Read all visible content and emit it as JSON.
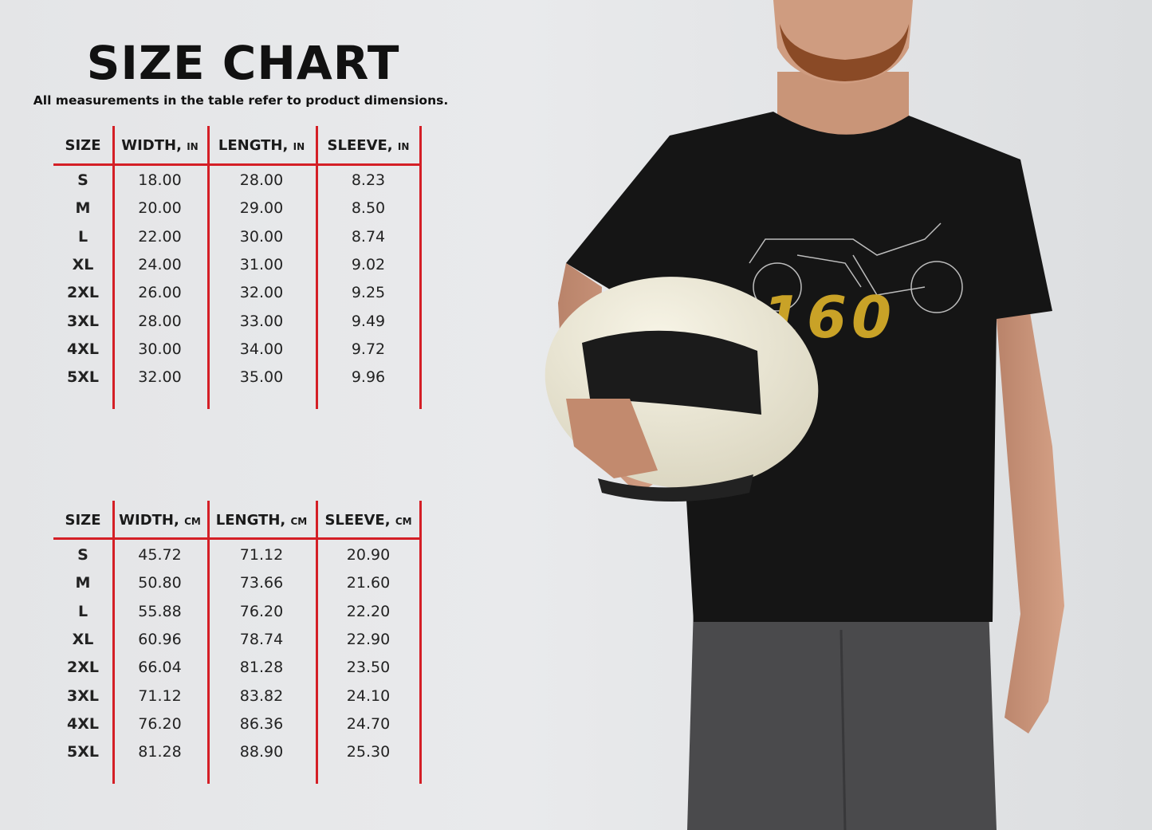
{
  "title": "SIZE CHART",
  "subtitle": "All measurements in the table refer to product dimensions.",
  "accent_color": "#d41f26",
  "tables": [
    {
      "headers": [
        {
          "label": "SIZE",
          "unit": ""
        },
        {
          "label": "WIDTH,",
          "unit": "IN"
        },
        {
          "label": "LENGTH,",
          "unit": "IN"
        },
        {
          "label": "SLEEVE,",
          "unit": "IN"
        }
      ],
      "rows": [
        [
          "S",
          "18.00",
          "28.00",
          "8.23"
        ],
        [
          "M",
          "20.00",
          "29.00",
          "8.50"
        ],
        [
          "L",
          "22.00",
          "30.00",
          "8.74"
        ],
        [
          "XL",
          "24.00",
          "31.00",
          "9.02"
        ],
        [
          "2XL",
          "26.00",
          "32.00",
          "9.25"
        ],
        [
          "3XL",
          "28.00",
          "33.00",
          "9.49"
        ],
        [
          "4XL",
          "30.00",
          "34.00",
          "9.72"
        ],
        [
          "5XL",
          "32.00",
          "35.00",
          "9.96"
        ]
      ]
    },
    {
      "headers": [
        {
          "label": "SIZE",
          "unit": ""
        },
        {
          "label": "WIDTH,",
          "unit": "CM"
        },
        {
          "label": "LENGTH,",
          "unit": "CM"
        },
        {
          "label": "SLEEVE,",
          "unit": "CM"
        }
      ],
      "rows": [
        [
          "S",
          "45.72",
          "71.12",
          "20.90"
        ],
        [
          "M",
          "50.80",
          "73.66",
          "21.60"
        ],
        [
          "L",
          "55.88",
          "76.20",
          "22.20"
        ],
        [
          "XL",
          "60.96",
          "78.74",
          "22.90"
        ],
        [
          "2XL",
          "66.04",
          "81.28",
          "23.50"
        ],
        [
          "3XL",
          "71.12",
          "83.82",
          "24.10"
        ],
        [
          "4XL",
          "76.20",
          "86.36",
          "24.70"
        ],
        [
          "5XL",
          "81.28",
          "88.90",
          "25.30"
        ]
      ]
    }
  ],
  "photo": {
    "shirt_graphic_text": "160",
    "shirt_color": "#151515",
    "graphic_color": "#c9a227"
  }
}
